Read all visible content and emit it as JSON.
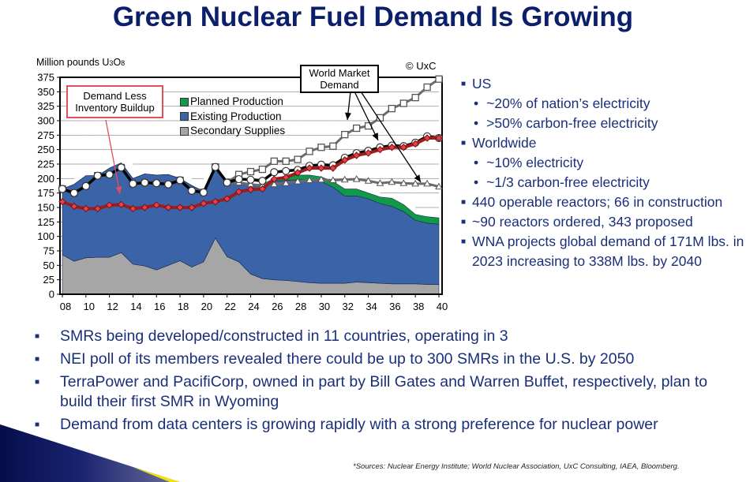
{
  "title": "Green Nuclear Fuel Demand Is Growing",
  "chart_data": {
    "type": "area",
    "title": "",
    "ylabel_prefix": "Million pounds U",
    "ylabel_sub1": "3",
    "ylabel_mid": "O",
    "ylabel_sub2": "8",
    "copyright": "© UxC",
    "ylim": [
      0,
      375
    ],
    "yticks": [
      "0",
      "25",
      "50",
      "75",
      "100",
      "125",
      "150",
      "175",
      "200",
      "225",
      "250",
      "275",
      "300",
      "325",
      "350",
      "375"
    ],
    "xticks": [
      "08",
      "10",
      "12",
      "14",
      "16",
      "18",
      "20",
      "22",
      "24",
      "26",
      "28",
      "30",
      "32",
      "34",
      "36",
      "38",
      "40"
    ],
    "x": [
      2008,
      2009,
      2010,
      2011,
      2012,
      2013,
      2014,
      2015,
      2016,
      2017,
      2018,
      2019,
      2020,
      2021,
      2022,
      2023,
      2024,
      2025,
      2026,
      2027,
      2028,
      2029,
      2030,
      2031,
      2032,
      2033,
      2034,
      2035,
      2036,
      2037,
      2038,
      2039,
      2040
    ],
    "stacked_series": [
      {
        "name": "Secondary Supplies",
        "color": "#a6a6a6",
        "values": [
          68,
          57,
          63,
          64,
          64,
          72,
          52,
          49,
          42,
          50,
          58,
          47,
          56,
          97,
          65,
          56,
          35,
          27,
          25,
          24,
          22,
          20,
          19,
          19,
          19,
          21,
          20,
          19,
          18,
          18,
          18,
          17,
          17
        ]
      },
      {
        "name": "Existing Production",
        "color": "#3a63a8",
        "values": [
          114,
          133,
          142,
          141,
          154,
          155,
          148,
          159,
          164,
          157,
          142,
          141,
          122,
          123,
          130,
          139,
          155,
          161,
          170,
          173,
          176,
          178,
          176,
          166,
          151,
          149,
          145,
          138,
          134,
          125,
          110,
          106,
          104
        ]
      },
      {
        "name": "Planned Production",
        "color": "#109a48",
        "values": [
          0,
          0,
          0,
          0,
          0,
          0,
          0,
          0,
          0,
          0,
          0,
          0,
          0,
          0,
          0,
          0,
          0,
          2,
          5,
          5,
          8,
          8,
          8,
          10,
          12,
          12,
          10,
          11,
          14,
          12,
          10,
          11,
          11
        ]
      }
    ],
    "line_series": [
      {
        "name": "World Market Demand (high)",
        "marker": "square",
        "color": "#6b6b6b",
        "values": [
          182,
          175,
          187,
          205,
          207,
          219,
          191,
          193,
          192,
          190,
          197,
          179,
          176,
          220,
          193,
          207,
          212,
          216,
          230,
          230,
          233,
          247,
          254,
          256,
          276,
          287,
          291,
          305,
          321,
          330,
          340,
          358,
          372
        ]
      },
      {
        "name": "World Market Demand (reference)",
        "marker": "circle",
        "color": "#000000",
        "values": [
          182,
          175,
          187,
          205,
          207,
          219,
          191,
          193,
          192,
          190,
          197,
          179,
          176,
          220,
          193,
          199,
          198,
          196,
          211,
          213,
          215,
          222,
          224,
          223,
          236,
          244,
          248,
          254,
          257,
          256,
          262,
          273,
          270
        ]
      },
      {
        "name": "World Market Demand (low)",
        "marker": "triangle",
        "color": "#6b6b6b",
        "values": [
          182,
          175,
          187,
          205,
          207,
          219,
          191,
          193,
          192,
          190,
          197,
          179,
          176,
          220,
          193,
          193,
          190,
          188,
          190,
          192,
          195,
          197,
          198,
          197,
          198,
          199,
          196,
          192,
          194,
          192,
          191,
          191,
          186
        ]
      },
      {
        "name": "Demand Less Inventory Buildup",
        "marker": "diamond",
        "color": "#9e1c1c",
        "values": [
          160,
          152,
          148,
          148,
          154,
          155,
          148,
          150,
          154,
          150,
          150,
          150,
          157,
          160,
          165,
          177,
          181,
          182,
          199,
          202,
          210,
          218,
          218,
          218,
          232,
          240,
          244,
          250,
          254,
          254,
          260,
          270,
          270
        ]
      }
    ],
    "legend": [
      "Planned Production",
      "Existing Production",
      "Secondary Supplies"
    ],
    "annotations": {
      "inventory_line1": "Demand Less",
      "inventory_line2": "Inventory Buildup",
      "demand_line1": "World Market",
      "demand_line2": "Demand"
    }
  },
  "right_bullets": [
    {
      "level": 1,
      "text": "US"
    },
    {
      "level": 2,
      "text": "~20% of nation’s electricity"
    },
    {
      "level": 2,
      "text": ">50% carbon-free electricity"
    },
    {
      "level": 1,
      "text": "Worldwide"
    },
    {
      "level": 2,
      "text": "~10% electricity"
    },
    {
      "level": 2,
      "text": "~1/3 carbon-free electricity"
    },
    {
      "level": 1,
      "text": "440 operable reactors; 66 in construction"
    },
    {
      "level": 1,
      "text": "~90 reactors ordered, 343 proposed"
    },
    {
      "level": 1,
      "text": "WNA projects global demand of 171M lbs. in 2023 increasing to 338M lbs. by 2040"
    }
  ],
  "bottom_bullets": [
    "SMRs being developed/constructed in 11 countries, operating in 3",
    "NEI poll of its members revealed there could be up to 300 SMRs in the U.S. by 2050",
    "TerraPower and PacifiCorp, owned in part by Bill Gates and Warren Buffet, respectively, plan to build their first SMR in Wyoming",
    "Demand from data centers is growing rapidly with a strong preference for nuclear power"
  ],
  "bullet_glyph": "■",
  "sub_bullet_glyph": "•",
  "sources": "*Sources: Nuclear Energy Institute; World Nuclear Association, UxC Consulting, IAEA, Bloomberg."
}
